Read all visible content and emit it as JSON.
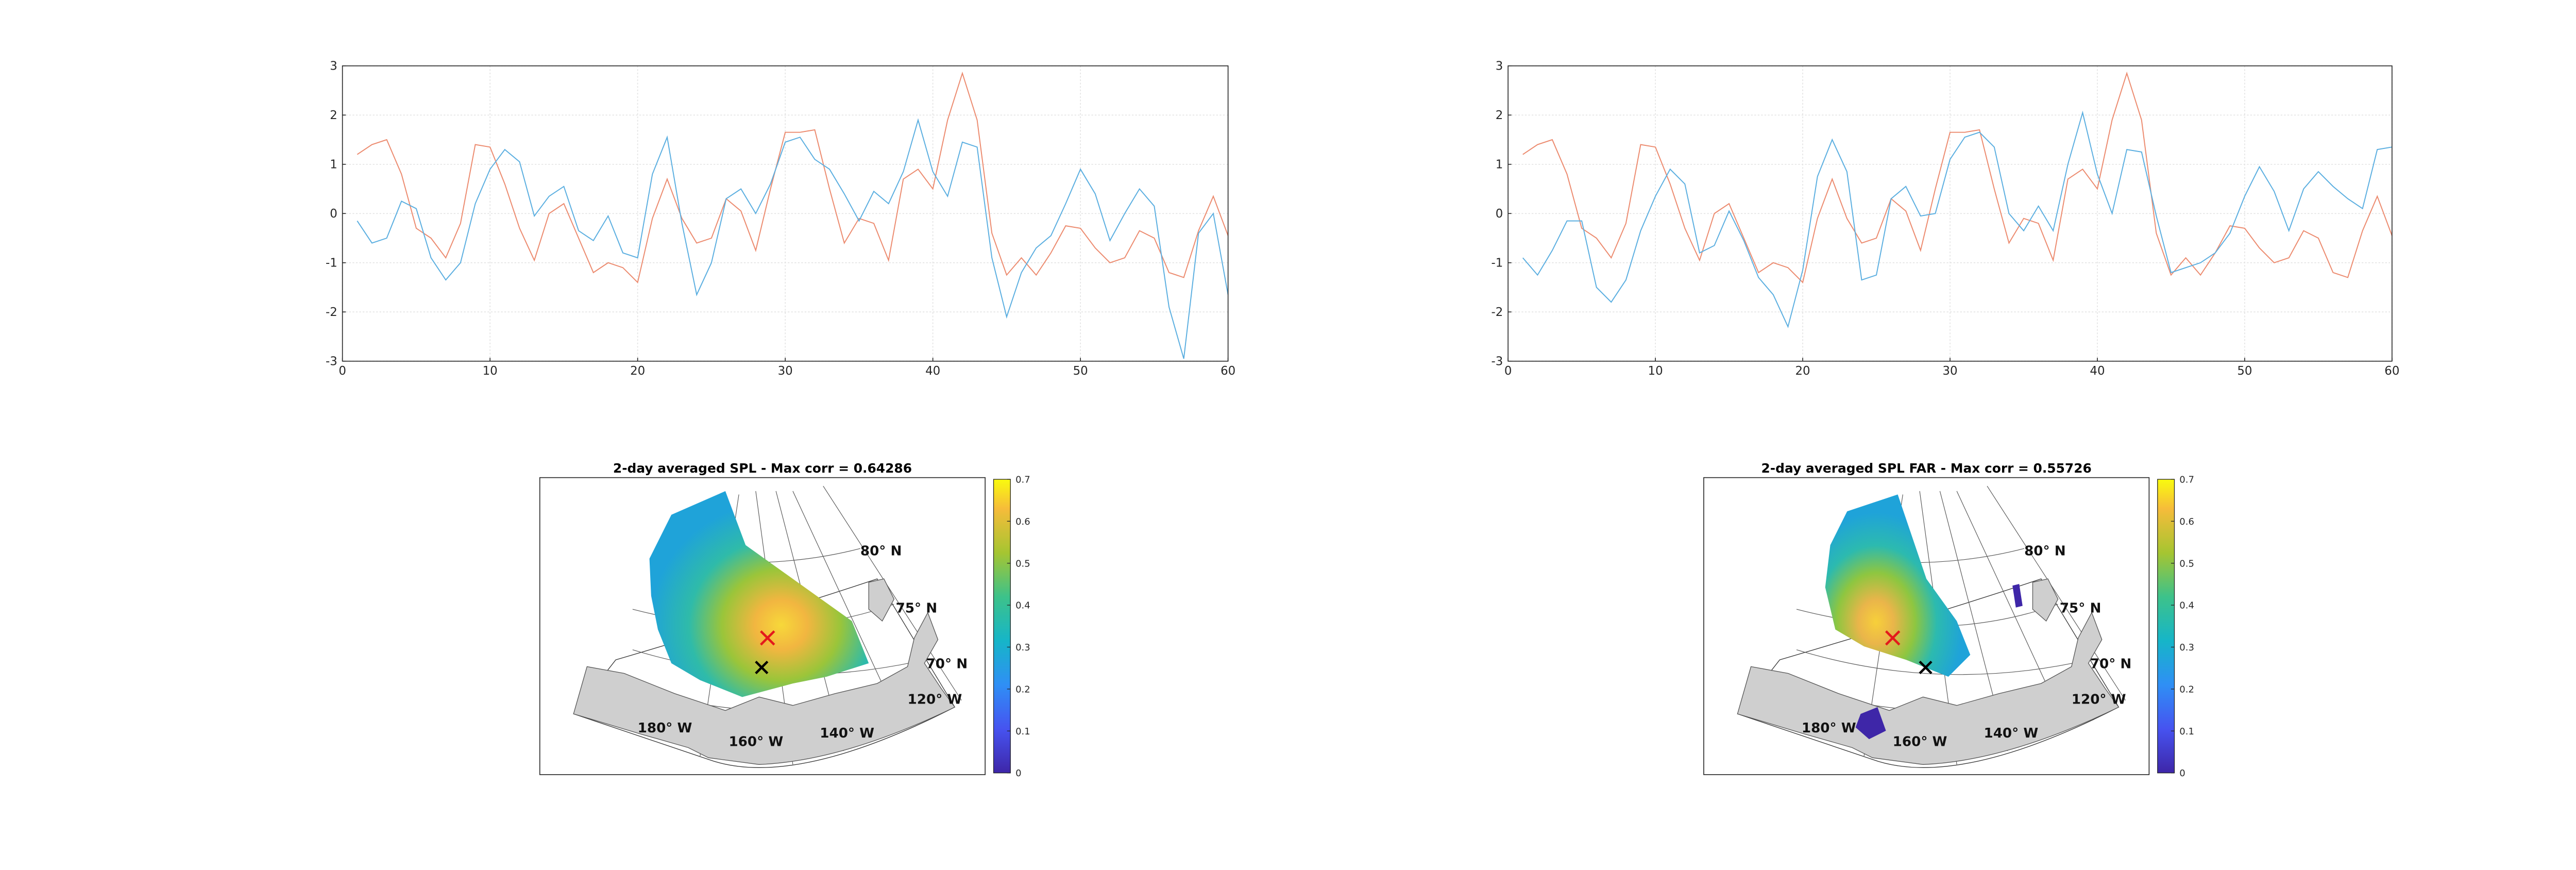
{
  "chart_data": [
    {
      "type": "line",
      "x": [
        1,
        2,
        3,
        4,
        5,
        6,
        7,
        8,
        9,
        10,
        11,
        12,
        13,
        14,
        15,
        16,
        17,
        18,
        19,
        20,
        21,
        22,
        23,
        24,
        25,
        26,
        27,
        28,
        29,
        30,
        31,
        32,
        33,
        34,
        35,
        36,
        37,
        38,
        39,
        40,
        41,
        42,
        43,
        44,
        45,
        46,
        47,
        48,
        49,
        50,
        51,
        52,
        53,
        54,
        55,
        56,
        57,
        58,
        59,
        60
      ],
      "xlim": [
        0,
        60
      ],
      "xticks": [
        0,
        10,
        20,
        30,
        40,
        50,
        60
      ],
      "ylim": [
        -3,
        3
      ],
      "yticks": [
        -3,
        -2,
        -1,
        0,
        1,
        2,
        3
      ],
      "grid": true,
      "series": [
        {
          "color": "#ec8a6e",
          "values": [
            1.2,
            1.4,
            1.5,
            0.8,
            -0.3,
            -0.5,
            -0.9,
            -0.2,
            1.4,
            1.35,
            0.6,
            -0.3,
            -0.95,
            0,
            0.2,
            -0.5,
            -1.2,
            -1,
            -1.1,
            -1.4,
            -0.1,
            0.7,
            -0.1,
            -0.6,
            -0.5,
            0.3,
            0.05,
            -0.75,
            0.5,
            1.65,
            1.65,
            1.7,
            0.5,
            -0.6,
            -0.1,
            -0.2,
            -0.95,
            0.7,
            0.9,
            0.5,
            1.9,
            2.85,
            1.9,
            -0.4,
            -1.25,
            -0.9,
            -1.25,
            -0.8,
            -0.25,
            -0.3,
            -0.7,
            -1,
            -0.9,
            -0.35,
            -0.5,
            -1.2,
            -1.3,
            -0.35,
            0.35,
            -0.45
          ]
        },
        {
          "color": "#5aaee0",
          "values": [
            -0.15,
            -0.6,
            -0.5,
            0.25,
            0.1,
            -0.9,
            -1.35,
            -1,
            0.2,
            0.9,
            1.3,
            1.05,
            -0.05,
            0.35,
            0.55,
            -0.35,
            -0.55,
            -0.05,
            -0.8,
            -0.9,
            0.8,
            1.55,
            -0.2,
            -1.65,
            -1,
            0.3,
            0.5,
            0,
            0.6,
            1.45,
            1.55,
            1.1,
            0.9,
            0.4,
            -0.15,
            0.45,
            0.2,
            0.85,
            1.9,
            0.85,
            0.35,
            1.45,
            1.35,
            -0.9,
            -2.1,
            -1.2,
            -0.7,
            -0.45,
            0.2,
            0.9,
            0.4,
            -0.55,
            0,
            0.5,
            0.15,
            -1.9,
            -2.95,
            -0.4,
            0,
            -1.65
          ]
        }
      ]
    },
    {
      "type": "line",
      "x": [
        1,
        2,
        3,
        4,
        5,
        6,
        7,
        8,
        9,
        10,
        11,
        12,
        13,
        14,
        15,
        16,
        17,
        18,
        19,
        20,
        21,
        22,
        23,
        24,
        25,
        26,
        27,
        28,
        29,
        30,
        31,
        32,
        33,
        34,
        35,
        36,
        37,
        38,
        39,
        40,
        41,
        42,
        43,
        44,
        45,
        46,
        47,
        48,
        49,
        50,
        51,
        52,
        53,
        54,
        55,
        56,
        57,
        58,
        59,
        60
      ],
      "xlim": [
        0,
        60
      ],
      "xticks": [
        0,
        10,
        20,
        30,
        40,
        50,
        60
      ],
      "ylim": [
        -3,
        3
      ],
      "yticks": [
        -3,
        -2,
        -1,
        0,
        1,
        2,
        3
      ],
      "grid": true,
      "series": [
        {
          "color": "#ec8a6e",
          "values": [
            1.2,
            1.4,
            1.5,
            0.8,
            -0.3,
            -0.5,
            -0.9,
            -0.2,
            1.4,
            1.35,
            0.6,
            -0.3,
            -0.95,
            0,
            0.2,
            -0.5,
            -1.2,
            -1,
            -1.1,
            -1.4,
            -0.1,
            0.7,
            -0.1,
            -0.6,
            -0.5,
            0.3,
            0.05,
            -0.75,
            0.5,
            1.65,
            1.65,
            1.7,
            0.5,
            -0.6,
            -0.1,
            -0.2,
            -0.95,
            0.7,
            0.9,
            0.5,
            1.9,
            2.85,
            1.9,
            -0.4,
            -1.25,
            -0.9,
            -1.25,
            -0.8,
            -0.25,
            -0.3,
            -0.7,
            -1,
            -0.9,
            -0.35,
            -0.5,
            -1.2,
            -1.3,
            -0.35,
            0.35,
            -0.45
          ]
        },
        {
          "color": "#5aaee0",
          "values": [
            -0.9,
            -1.25,
            -0.75,
            -0.15,
            -0.15,
            -1.5,
            -1.8,
            -1.35,
            -0.35,
            0.35,
            0.9,
            0.6,
            -0.8,
            -0.65,
            0.05,
            -0.55,
            -1.3,
            -1.65,
            -2.3,
            -1.15,
            0.75,
            1.5,
            0.85,
            -1.35,
            -1.25,
            0.3,
            0.55,
            -0.05,
            0,
            1.1,
            1.55,
            1.65,
            1.35,
            0,
            -0.35,
            0.15,
            -0.35,
            1,
            2.05,
            0.8,
            0,
            1.3,
            1.25,
            -0.05,
            -1.2,
            -1.1,
            -1,
            -0.8,
            -0.4,
            0.35,
            0.95,
            0.45,
            -0.35,
            0.5,
            0.85,
            0.55,
            0.3,
            0.1,
            1.3,
            1.35
          ]
        }
      ]
    },
    {
      "type": "map",
      "title": "2-day averaged SPL - Max corr = 0.64286",
      "labels": [
        "80° N",
        "75° N",
        "70° N",
        "120° W",
        "140° W",
        "160° W",
        "180° W"
      ],
      "clim": [
        0,
        0.7
      ],
      "cticks": [
        0,
        0.1,
        0.2,
        0.3,
        0.4,
        0.5,
        0.6,
        0.7
      ]
    },
    {
      "type": "map",
      "title": "2-day averaged SPL FAR - Max corr = 0.55726",
      "labels": [
        "80° N",
        "75° N",
        "70° N",
        "120° W",
        "140° W",
        "160° W",
        "180° W"
      ],
      "clim": [
        0,
        0.7
      ],
      "cticks": [
        0,
        0.1,
        0.2,
        0.3,
        0.4,
        0.5,
        0.6,
        0.7
      ]
    }
  ]
}
